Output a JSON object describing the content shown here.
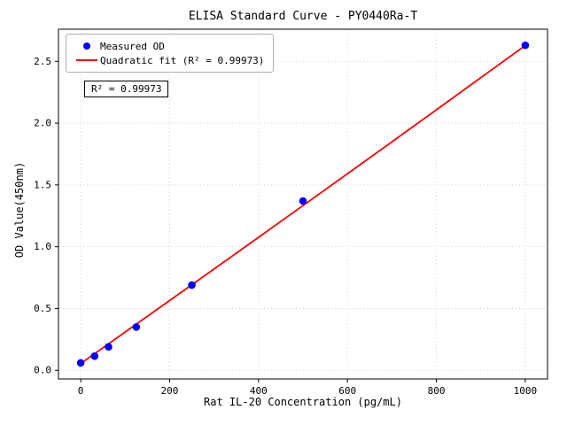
{
  "chart_data": {
    "type": "scatter",
    "title": "ELISA Standard Curve - PY0440Ra-T",
    "xlabel": "Rat IL-20 Concentration (pg/mL)",
    "ylabel": "OD Value(450nm)",
    "xlim": [
      -50,
      1050
    ],
    "ylim": [
      -0.07,
      2.76
    ],
    "xticks": [
      0,
      200,
      400,
      600,
      800,
      1000
    ],
    "xtick_labels": [
      "0",
      "200",
      "400",
      "600",
      "800",
      "1000"
    ],
    "yticks": [
      0.0,
      0.5,
      1.0,
      1.5,
      2.0,
      2.5
    ],
    "ytick_labels": [
      "0.0",
      "0.5",
      "1.0",
      "1.5",
      "2.0",
      "2.5"
    ],
    "grid": true,
    "annotation": "R² = 0.99973",
    "legend": {
      "position": "upper left",
      "entries": [
        {
          "label": "Measured OD",
          "marker": "circle",
          "color": "#0000ff"
        },
        {
          "label": "Quadratic fit (R² = 0.99973)",
          "marker": "line",
          "color": "#ff0000"
        }
      ]
    },
    "series": [
      {
        "name": "Quadratic fit",
        "type": "line",
        "color": "#ff0000",
        "points": [
          [
            0,
            0.055
          ],
          [
            125,
            0.373
          ],
          [
            250,
            0.692
          ],
          [
            375,
            1.012
          ],
          [
            500,
            1.333
          ],
          [
            625,
            1.655
          ],
          [
            750,
            1.978
          ],
          [
            875,
            2.303
          ],
          [
            1000,
            2.628
          ]
        ]
      },
      {
        "name": "Measured OD",
        "type": "scatter",
        "color": "#0000ff",
        "points": [
          [
            0,
            0.06
          ],
          [
            31.25,
            0.115
          ],
          [
            62.5,
            0.19
          ],
          [
            125,
            0.35
          ],
          [
            250,
            0.69
          ],
          [
            500,
            1.37
          ],
          [
            1000,
            2.63
          ]
        ]
      }
    ]
  }
}
